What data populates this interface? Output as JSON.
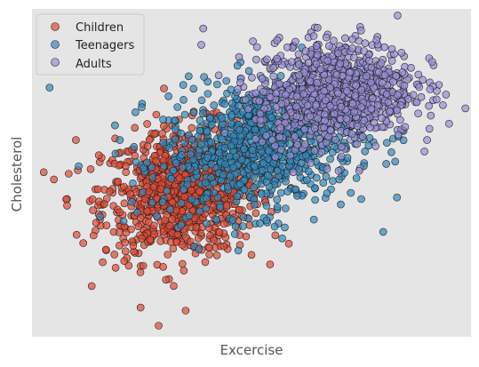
{
  "chart_data": {
    "type": "scatter",
    "title": "",
    "xlabel": "Excercise",
    "ylabel": "Cholesterol",
    "xlim": [
      0,
      100
    ],
    "ylim": [
      0,
      100
    ],
    "grid": false,
    "axis_ticks": false,
    "legend_placement": "top-left",
    "series": [
      {
        "name": "Children",
        "color": "#E24A33",
        "sample_points": [
          [
            5,
            48
          ],
          [
            10,
            60
          ],
          [
            15,
            45
          ],
          [
            20,
            38
          ],
          [
            25,
            30
          ],
          [
            35,
            8
          ],
          [
            30,
            40
          ],
          [
            50,
            25
          ],
          [
            45,
            60
          ],
          [
            8,
            40
          ]
        ]
      },
      {
        "name": "Teenagers",
        "color": "#348ABD",
        "sample_points": [
          [
            4,
            76
          ],
          [
            25,
            70
          ],
          [
            30,
            52
          ],
          [
            45,
            55
          ],
          [
            60,
            45
          ],
          [
            70,
            48
          ],
          [
            75,
            42
          ],
          [
            80,
            32
          ],
          [
            57,
            30
          ],
          [
            20,
            60
          ]
        ]
      },
      {
        "name": "Adults",
        "color": "#988ED5",
        "sample_points": [
          [
            39,
            94
          ],
          [
            55,
            82
          ],
          [
            65,
            86
          ],
          [
            75,
            70
          ],
          [
            85,
            64
          ],
          [
            90,
            60
          ],
          [
            95,
            65
          ],
          [
            60,
            90
          ],
          [
            73,
            88
          ],
          [
            52,
            68
          ]
        ]
      }
    ]
  }
}
